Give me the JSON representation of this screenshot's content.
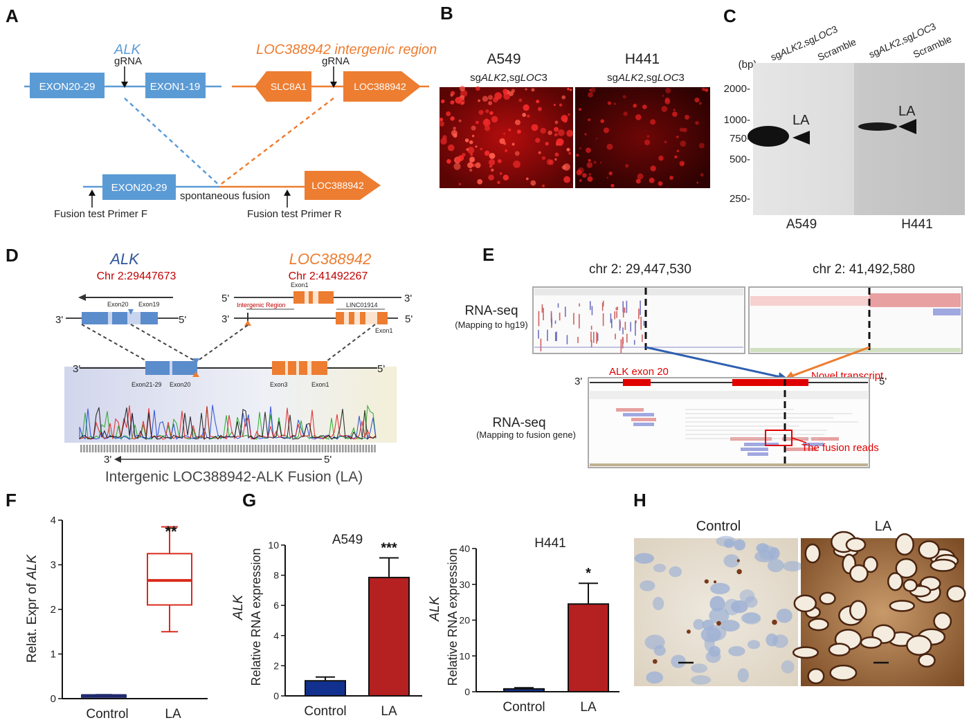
{
  "panels": {
    "A": {
      "letter": "A",
      "alk_label": "ALK",
      "loc_label": "LOC388942 intergenic region",
      "grna_left": "gRNA",
      "grna_right": "gRNA",
      "exon20_29": "EXON20-29",
      "exon1_19": "EXON1-19",
      "slc8a1": "SLC8A1",
      "loc388942": "LOC388942",
      "fused_exon": "EXON20-29",
      "fused_loc": "LOC388942",
      "spontaneous": "spontaneous fusion",
      "primer_f": "Fusion test Primer F",
      "primer_r": "Fusion test Primer R",
      "colors": {
        "alk": "#5b9bd5",
        "loc": "#ed7d31"
      }
    },
    "B": {
      "letter": "B",
      "col1_title": "A549",
      "col1_sub_a": "sg",
      "col1_sub_b": "ALK",
      "col1_sub_c": "2,sg",
      "col1_sub_d": "LOC",
      "col1_sub_e": "3",
      "col2_title": "H441",
      "col2_sub_a": "sg",
      "col2_sub_b": "ALK",
      "col2_sub_c": "2,sg",
      "col2_sub_d": "LOC",
      "col2_sub_e": "3"
    },
    "C": {
      "letter": "C",
      "unit": "(bp)",
      "ladder": [
        "2000-",
        "1000-",
        "750-",
        "500-",
        "250-"
      ],
      "lane1_a": "sg",
      "lane1_b": "ALK",
      "lane1_c": "2,sg",
      "lane1_d": "LOC",
      "lane1_e": "3",
      "lane2": "Scramble",
      "lane3_a": "sg",
      "lane3_b": "ALK",
      "lane3_c": "2,sg",
      "lane3_d": "LOC",
      "lane3_e": "3",
      "lane4": "Scramble",
      "band_label_1": "LA",
      "band_label_2": "LA",
      "cell_1": "A549",
      "cell_2": "H441"
    },
    "D": {
      "letter": "D",
      "alk": "ALK",
      "alk_chr": "Chr 2:29447673",
      "loc": "LOC388942",
      "loc_chr": "Chr 2:41492267",
      "exon20": "Exon20",
      "exon19": "Exon19",
      "exon1_top": "Exon1",
      "intergenic": "Intergenic Region",
      "linc": "LINC01914",
      "exon1_right": "Exon1",
      "exon21_29": "Exon21-29",
      "exon20_b": "Exon20",
      "exon3": "Exon3",
      "exon1_b": "Exon1",
      "p3": "3'",
      "p5": "5'",
      "caption": "Intergenic LOC388942-ALK Fusion (LA)"
    },
    "E": {
      "letter": "E",
      "coord1": "chr 2: 29,447,530",
      "coord2": "chr 2: 41,492,580",
      "rnaseq1": "RNA-seq",
      "rnaseq1_sub": "(Mapping to hg19)",
      "alk_exon20": "ALK exon 20",
      "novel": "Novel transcript",
      "rnaseq2": "RNA-seq",
      "rnaseq2_sub": "(Mapping to fusion gene)",
      "fusion_reads": "The fusion reads",
      "p3": "3'",
      "p5": "5'"
    },
    "F": {
      "letter": "F",
      "ylabel_a": "Relat. Expr of ",
      "ylabel_b": "ALK",
      "significance": "**"
    },
    "G": {
      "letter": "G",
      "ylabel_gene": "ALK",
      "ylabel": "Relative RNA expression",
      "ylabel2_gene": "ALK",
      "ylabel2": "Relative RNA expression"
    },
    "H": {
      "letter": "H",
      "col1": "Control",
      "col2": "LA"
    }
  },
  "chart_data": [
    {
      "type": "box",
      "panel": "F",
      "categories": [
        "Control",
        "LA"
      ],
      "ylim": [
        0,
        4
      ],
      "yticks": [
        0,
        1,
        2,
        3,
        4
      ],
      "boxes": [
        {
          "category": "Control",
          "min": 0.05,
          "q1": 0.06,
          "median": 0.07,
          "q3": 0.08,
          "max": 0.09,
          "color": "#1f2a6e"
        },
        {
          "category": "LA",
          "min": 1.5,
          "q1": 2.1,
          "median": 2.65,
          "q3": 3.25,
          "max": 3.85,
          "color": "#d92b1c"
        }
      ],
      "significance": "**"
    },
    {
      "type": "bar",
      "panel": "G-left",
      "title": "A549",
      "categories": [
        "Control",
        "LA"
      ],
      "values": [
        1.0,
        7.85
      ],
      "errors": [
        0.25,
        1.3
      ],
      "colors": [
        "#12318f",
        "#b52020"
      ],
      "ylim": [
        0,
        10
      ],
      "yticks": [
        0,
        2,
        4,
        6,
        8,
        10
      ],
      "significance": "***"
    },
    {
      "type": "bar",
      "panel": "G-right",
      "title": "H441",
      "categories": [
        "Control",
        "LA"
      ],
      "values": [
        0.8,
        24.5
      ],
      "errors": [
        0.3,
        5.8
      ],
      "colors": [
        "#12318f",
        "#b52020"
      ],
      "ylim": [
        0,
        40
      ],
      "yticks": [
        0,
        10,
        20,
        30,
        40
      ],
      "significance": "*"
    }
  ]
}
